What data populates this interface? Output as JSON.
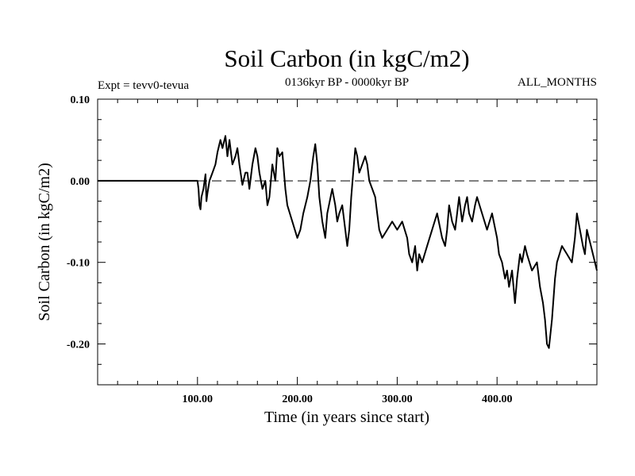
{
  "chart_data": {
    "type": "line",
    "title": "Soil Carbon (in kgC/m2)",
    "subtitle": "0136kyr BP - 0000kyr BP",
    "experiment_label": "Expt = tevv0-tevua",
    "period_label": "ALL_MONTHS",
    "xlabel": "Time (in years since start)",
    "ylabel": "Soil Carbon (in kgC/m2)",
    "xlim": [
      0,
      500
    ],
    "ylim": [
      -0.25,
      0.1
    ],
    "x_ticks": [
      100,
      200,
      300,
      400
    ],
    "x_tick_labels": [
      "100.00",
      "200.00",
      "300.00",
      "400.00"
    ],
    "x_minor_step": 20,
    "y_ticks": [
      0.1,
      0.0,
      -0.1,
      -0.2
    ],
    "y_tick_labels": [
      "0.10",
      "0.00",
      "-0.10",
      "-0.20"
    ],
    "y_minor_step": 0.025,
    "zero_reference_line": "dashed",
    "grid": false,
    "series": [
      {
        "color": "#000000",
        "x": [
          0,
          100,
          101,
          102,
          103,
          104,
          106,
          108,
          109,
          110,
          112,
          115,
          118,
          120,
          123,
          125,
          128,
          130,
          132,
          135,
          138,
          140,
          142,
          145,
          148,
          150,
          152,
          155,
          158,
          160,
          162,
          165,
          168,
          170,
          172,
          175,
          178,
          180,
          182,
          185,
          188,
          190,
          195,
          200,
          203,
          206,
          210,
          213,
          216,
          218,
          220,
          222,
          225,
          228,
          230,
          235,
          238,
          240,
          242,
          245,
          248,
          250,
          252,
          254,
          256,
          258,
          260,
          262,
          265,
          268,
          270,
          272,
          275,
          278,
          280,
          282,
          285,
          290,
          295,
          300,
          305,
          310,
          312,
          315,
          318,
          320,
          322,
          325,
          330,
          335,
          340,
          345,
          348,
          350,
          352,
          355,
          358,
          360,
          362,
          365,
          368,
          370,
          372,
          375,
          378,
          380,
          385,
          390,
          395,
          400,
          402,
          405,
          408,
          410,
          412,
          415,
          418,
          420,
          423,
          425,
          428,
          430,
          435,
          440,
          443,
          446,
          448,
          450,
          452,
          455,
          458,
          460,
          465,
          470,
          475,
          478,
          480,
          483,
          486,
          488,
          490,
          492,
          494,
          496,
          498,
          500
        ],
        "y": [
          0.0,
          0.0,
          -0.01,
          -0.03,
          -0.035,
          -0.02,
          -0.01,
          0.008,
          -0.025,
          -0.015,
          0.0,
          0.01,
          0.02,
          0.035,
          0.05,
          0.04,
          0.055,
          0.03,
          0.05,
          0.02,
          0.03,
          0.04,
          0.02,
          -0.005,
          0.01,
          0.01,
          -0.01,
          0.02,
          0.04,
          0.03,
          0.01,
          -0.01,
          0.0,
          -0.03,
          -0.02,
          0.02,
          0.0,
          0.04,
          0.03,
          0.035,
          -0.01,
          -0.03,
          -0.05,
          -0.07,
          -0.06,
          -0.04,
          -0.02,
          0.0,
          0.03,
          0.045,
          0.02,
          -0.02,
          -0.05,
          -0.07,
          -0.04,
          -0.01,
          -0.03,
          -0.05,
          -0.04,
          -0.03,
          -0.06,
          -0.08,
          -0.06,
          -0.02,
          0.01,
          0.04,
          0.03,
          0.01,
          0.02,
          0.03,
          0.02,
          0.0,
          -0.01,
          -0.02,
          -0.04,
          -0.06,
          -0.07,
          -0.06,
          -0.05,
          -0.06,
          -0.05,
          -0.07,
          -0.09,
          -0.1,
          -0.08,
          -0.11,
          -0.09,
          -0.1,
          -0.08,
          -0.06,
          -0.04,
          -0.07,
          -0.08,
          -0.06,
          -0.03,
          -0.05,
          -0.06,
          -0.04,
          -0.02,
          -0.05,
          -0.03,
          -0.02,
          -0.04,
          -0.05,
          -0.03,
          -0.02,
          -0.04,
          -0.06,
          -0.04,
          -0.07,
          -0.09,
          -0.1,
          -0.12,
          -0.11,
          -0.13,
          -0.11,
          -0.15,
          -0.12,
          -0.09,
          -0.1,
          -0.08,
          -0.09,
          -0.11,
          -0.1,
          -0.13,
          -0.15,
          -0.17,
          -0.2,
          -0.205,
          -0.17,
          -0.12,
          -0.1,
          -0.08,
          -0.09,
          -0.1,
          -0.07,
          -0.04,
          -0.06,
          -0.08,
          -0.09,
          -0.06,
          -0.07,
          -0.08,
          -0.09,
          -0.1,
          -0.11
        ]
      }
    ]
  }
}
